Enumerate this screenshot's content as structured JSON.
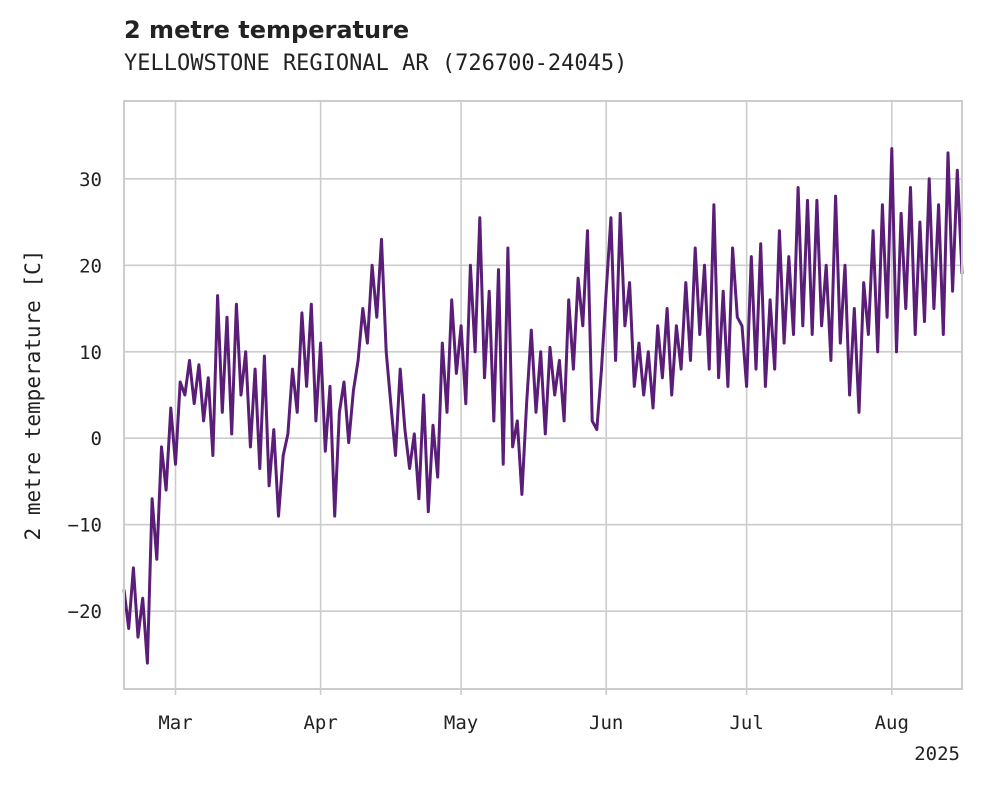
{
  "chart_data": {
    "type": "line",
    "title": "2 metre temperature",
    "subtitle": "YELLOWSTONE REGIONAL AR (726700-24045)",
    "xlabel": "",
    "ylabel": "2 metre temperature [C]",
    "x_range": [
      "2025-02-18",
      "2025-08-16"
    ],
    "ylim": [
      -29,
      39
    ],
    "y_ticks": [
      -20,
      -10,
      0,
      10,
      20,
      30
    ],
    "x_ticks": [
      {
        "date": "2025-03-01",
        "label": "Mar"
      },
      {
        "date": "2025-04-01",
        "label": "Apr"
      },
      {
        "date": "2025-05-01",
        "label": "May"
      },
      {
        "date": "2025-06-01",
        "label": "Jun"
      },
      {
        "date": "2025-07-01",
        "label": "Jul"
      },
      {
        "date": "2025-08-01",
        "label": "Aug"
      }
    ],
    "x_offset_label": "2025",
    "grid": true,
    "legend": "none",
    "series": [
      {
        "color": "#5a1e78",
        "points": [
          [
            "2025-02-18",
            -17.5
          ],
          [
            "2025-02-19",
            -22.0
          ],
          [
            "2025-02-20",
            -15.0
          ],
          [
            "2025-02-21",
            -23.0
          ],
          [
            "2025-02-22",
            -18.5
          ],
          [
            "2025-02-23",
            -26.0
          ],
          [
            "2025-02-24",
            -7.0
          ],
          [
            "2025-02-25",
            -14.0
          ],
          [
            "2025-02-26",
            -1.0
          ],
          [
            "2025-02-27",
            -6.0
          ],
          [
            "2025-02-28",
            3.5
          ],
          [
            "2025-03-01",
            -3.0
          ],
          [
            "2025-03-02",
            6.5
          ],
          [
            "2025-03-03",
            5.0
          ],
          [
            "2025-03-04",
            9.0
          ],
          [
            "2025-03-05",
            4.0
          ],
          [
            "2025-03-06",
            8.5
          ],
          [
            "2025-03-07",
            2.0
          ],
          [
            "2025-03-08",
            7.0
          ],
          [
            "2025-03-09",
            -2.0
          ],
          [
            "2025-03-10",
            16.5
          ],
          [
            "2025-03-11",
            3.0
          ],
          [
            "2025-03-12",
            14.0
          ],
          [
            "2025-03-13",
            0.5
          ],
          [
            "2025-03-14",
            15.5
          ],
          [
            "2025-03-15",
            5.0
          ],
          [
            "2025-03-16",
            10.0
          ],
          [
            "2025-03-17",
            -1.0
          ],
          [
            "2025-03-18",
            8.0
          ],
          [
            "2025-03-19",
            -3.5
          ],
          [
            "2025-03-20",
            9.5
          ],
          [
            "2025-03-21",
            -5.5
          ],
          [
            "2025-03-22",
            1.0
          ],
          [
            "2025-03-23",
            -9.0
          ],
          [
            "2025-03-24",
            -2.0
          ],
          [
            "2025-03-25",
            0.5
          ],
          [
            "2025-03-26",
            8.0
          ],
          [
            "2025-03-27",
            3.0
          ],
          [
            "2025-03-28",
            14.5
          ],
          [
            "2025-03-29",
            6.0
          ],
          [
            "2025-03-30",
            15.5
          ],
          [
            "2025-03-31",
            2.0
          ],
          [
            "2025-04-01",
            11.0
          ],
          [
            "2025-04-02",
            -1.5
          ],
          [
            "2025-04-03",
            6.0
          ],
          [
            "2025-04-04",
            -9.0
          ],
          [
            "2025-04-05",
            3.0
          ],
          [
            "2025-04-06",
            6.5
          ],
          [
            "2025-04-07",
            -0.5
          ],
          [
            "2025-04-08",
            5.5
          ],
          [
            "2025-04-09",
            9.0
          ],
          [
            "2025-04-10",
            15.0
          ],
          [
            "2025-04-11",
            11.0
          ],
          [
            "2025-04-12",
            20.0
          ],
          [
            "2025-04-13",
            14.0
          ],
          [
            "2025-04-14",
            23.0
          ],
          [
            "2025-04-15",
            10.0
          ],
          [
            "2025-04-16",
            4.0
          ],
          [
            "2025-04-17",
            -2.0
          ],
          [
            "2025-04-18",
            8.0
          ],
          [
            "2025-04-19",
            1.0
          ],
          [
            "2025-04-20",
            -3.5
          ],
          [
            "2025-04-21",
            0.5
          ],
          [
            "2025-04-22",
            -7.0
          ],
          [
            "2025-04-23",
            5.0
          ],
          [
            "2025-04-24",
            -8.5
          ],
          [
            "2025-04-25",
            1.5
          ],
          [
            "2025-04-26",
            -4.5
          ],
          [
            "2025-04-27",
            11.0
          ],
          [
            "2025-04-28",
            3.0
          ],
          [
            "2025-04-29",
            16.0
          ],
          [
            "2025-04-30",
            7.5
          ],
          [
            "2025-05-01",
            13.0
          ],
          [
            "2025-05-02",
            4.0
          ],
          [
            "2025-05-03",
            20.0
          ],
          [
            "2025-05-04",
            10.0
          ],
          [
            "2025-05-05",
            25.5
          ],
          [
            "2025-05-06",
            7.0
          ],
          [
            "2025-05-07",
            17.0
          ],
          [
            "2025-05-08",
            2.0
          ],
          [
            "2025-05-09",
            19.5
          ],
          [
            "2025-05-10",
            -3.0
          ],
          [
            "2025-05-11",
            22.0
          ],
          [
            "2025-05-12",
            -1.0
          ],
          [
            "2025-05-13",
            2.0
          ],
          [
            "2025-05-14",
            -6.5
          ],
          [
            "2025-05-15",
            4.0
          ],
          [
            "2025-05-16",
            12.5
          ],
          [
            "2025-05-17",
            3.0
          ],
          [
            "2025-05-18",
            10.0
          ],
          [
            "2025-05-19",
            0.5
          ],
          [
            "2025-05-20",
            10.5
          ],
          [
            "2025-05-21",
            5.0
          ],
          [
            "2025-05-22",
            9.0
          ],
          [
            "2025-05-23",
            2.0
          ],
          [
            "2025-05-24",
            16.0
          ],
          [
            "2025-05-25",
            8.0
          ],
          [
            "2025-05-26",
            18.5
          ],
          [
            "2025-05-27",
            13.0
          ],
          [
            "2025-05-28",
            24.0
          ],
          [
            "2025-05-29",
            2.0
          ],
          [
            "2025-05-30",
            1.0
          ],
          [
            "2025-05-31",
            8.0
          ],
          [
            "2025-06-01",
            17.0
          ],
          [
            "2025-06-02",
            25.5
          ],
          [
            "2025-06-03",
            9.0
          ],
          [
            "2025-06-04",
            26.0
          ],
          [
            "2025-06-05",
            13.0
          ],
          [
            "2025-06-06",
            18.0
          ],
          [
            "2025-06-07",
            6.0
          ],
          [
            "2025-06-08",
            11.0
          ],
          [
            "2025-06-09",
            5.0
          ],
          [
            "2025-06-10",
            10.0
          ],
          [
            "2025-06-11",
            3.5
          ],
          [
            "2025-06-12",
            13.0
          ],
          [
            "2025-06-13",
            7.0
          ],
          [
            "2025-06-14",
            15.0
          ],
          [
            "2025-06-15",
            5.0
          ],
          [
            "2025-06-16",
            13.0
          ],
          [
            "2025-06-17",
            8.0
          ],
          [
            "2025-06-18",
            18.0
          ],
          [
            "2025-06-19",
            9.0
          ],
          [
            "2025-06-20",
            22.0
          ],
          [
            "2025-06-21",
            12.0
          ],
          [
            "2025-06-22",
            20.0
          ],
          [
            "2025-06-23",
            8.0
          ],
          [
            "2025-06-24",
            27.0
          ],
          [
            "2025-06-25",
            7.0
          ],
          [
            "2025-06-26",
            17.0
          ],
          [
            "2025-06-27",
            6.0
          ],
          [
            "2025-06-28",
            22.0
          ],
          [
            "2025-06-29",
            14.0
          ],
          [
            "2025-06-30",
            13.0
          ],
          [
            "2025-07-01",
            6.0
          ],
          [
            "2025-07-02",
            21.0
          ],
          [
            "2025-07-03",
            8.0
          ],
          [
            "2025-07-04",
            22.5
          ],
          [
            "2025-07-05",
            6.0
          ],
          [
            "2025-07-06",
            16.0
          ],
          [
            "2025-07-07",
            8.0
          ],
          [
            "2025-07-08",
            24.0
          ],
          [
            "2025-07-09",
            11.0
          ],
          [
            "2025-07-10",
            21.0
          ],
          [
            "2025-07-11",
            12.0
          ],
          [
            "2025-07-12",
            29.0
          ],
          [
            "2025-07-13",
            13.0
          ],
          [
            "2025-07-14",
            27.5
          ],
          [
            "2025-07-15",
            12.0
          ],
          [
            "2025-07-16",
            27.5
          ],
          [
            "2025-07-17",
            13.0
          ],
          [
            "2025-07-18",
            20.0
          ],
          [
            "2025-07-19",
            9.0
          ],
          [
            "2025-07-20",
            28.0
          ],
          [
            "2025-07-21",
            11.0
          ],
          [
            "2025-07-22",
            20.0
          ],
          [
            "2025-07-23",
            5.0
          ],
          [
            "2025-07-24",
            15.0
          ],
          [
            "2025-07-25",
            3.0
          ],
          [
            "2025-07-26",
            18.0
          ],
          [
            "2025-07-27",
            12.0
          ],
          [
            "2025-07-28",
            24.0
          ],
          [
            "2025-07-29",
            10.0
          ],
          [
            "2025-07-30",
            27.0
          ],
          [
            "2025-07-31",
            14.0
          ],
          [
            "2025-08-01",
            33.5
          ],
          [
            "2025-08-02",
            10.0
          ],
          [
            "2025-08-03",
            26.0
          ],
          [
            "2025-08-04",
            15.0
          ],
          [
            "2025-08-05",
            29.0
          ],
          [
            "2025-08-06",
            12.0
          ],
          [
            "2025-08-07",
            25.0
          ],
          [
            "2025-08-08",
            13.5
          ],
          [
            "2025-08-09",
            30.0
          ],
          [
            "2025-08-10",
            15.0
          ],
          [
            "2025-08-11",
            27.0
          ],
          [
            "2025-08-12",
            12.0
          ],
          [
            "2025-08-13",
            33.0
          ],
          [
            "2025-08-14",
            17.0
          ],
          [
            "2025-08-15",
            31.0
          ],
          [
            "2025-08-16",
            19.0
          ]
        ]
      }
    ]
  }
}
